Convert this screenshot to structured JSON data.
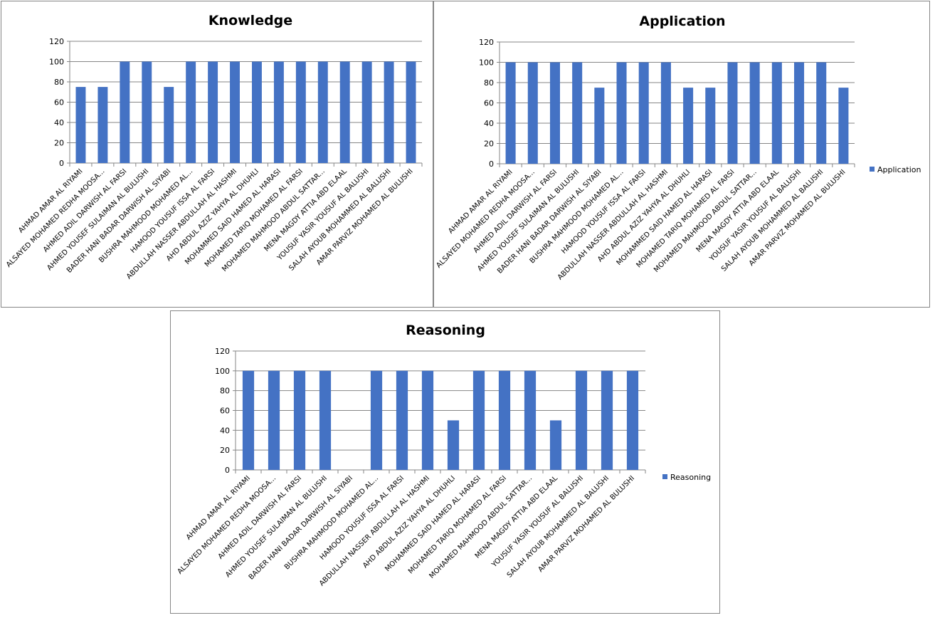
{
  "chart_data": [
    {
      "type": "bar",
      "title": "Knowledge",
      "legend": null,
      "ylim": [
        0,
        120
      ],
      "yticks": [
        "0",
        "20",
        "40",
        "60",
        "80",
        "100",
        "120"
      ],
      "grid": true,
      "color": "#4472C4",
      "categories": [
        "AHMAD AMAR  AL RIYAMI",
        "ALSAYED MOHAMED  REDHA MOOSA...",
        "AHMED ADIL DARWISH  AL FARSI",
        "AHMED YOUSEF  SULAIMAN AL BULUSHI",
        "BADER HANI BADAR DARWISH  AL SIYABI",
        "BUSHRA MAHMOOD MOHAMED AL...",
        "HAMOOD YOUSUF  ISSA AL FARSI",
        "ABDULLAH NASSER ABDULLAH AL HASHMI",
        "AHD ABDUL AZIZ  YAHYA  AL DHUHLI",
        "MOHAMMED SAID HAMED AL HARASI",
        "MOHAMED TARIQ MOHAMED  AL FARSI",
        "MOHAMED MAHMOOD ABDUL SATTAR...",
        "MENA MAGDY ATTIA  ABD  ELAAL",
        "YOUSUF YASIR YOUSUF AL BALUSHI",
        "SALAH AYOUB MOHAMMED  AL BALUSHI",
        "AMAR PARVIZ MOHAMED AL BULUSHI"
      ],
      "values": [
        75,
        75,
        100,
        100,
        75,
        100,
        100,
        100,
        100,
        100,
        100,
        100,
        100,
        100,
        100,
        100
      ]
    },
    {
      "type": "bar",
      "title": "Application",
      "legend": "Application",
      "legend_position": "right",
      "ylim": [
        0,
        120
      ],
      "yticks": [
        "0",
        "20",
        "40",
        "60",
        "80",
        "100",
        "120"
      ],
      "grid": true,
      "color": "#4472C4",
      "categories": [
        "AHMAD AMAR  AL RIYAMI",
        "ALSAYED MOHAMED  REDHA MOOSA...",
        "AHMED ADIL DARWISH  AL FARSI",
        "AHMED YOUSEF  SULAIMAN AL BULUSHI",
        "BADER HANI BADAR DARWISH  AL SIYABI",
        "BUSHRA MAHMOOD MOHAMED AL...",
        "HAMOOD YOUSUF  ISSA AL FARSI",
        "ABDULLAH NASSER ABDULLAH AL HASHMI",
        "AHD ABDUL AZIZ  YAHYA  AL DHUHLI",
        "MOHAMMED SAID HAMED AL HARASI",
        "MOHAMED TARIQ MOHAMED  AL FARSI",
        "MOHAMED MAHMOOD ABDUL SATTAR...",
        "MENA MAGDY ATTIA  ABD  ELAAL",
        "YOUSUF YASIR YOUSUF AL BALUSHI",
        "SALAH AYOUB MOHAMMED  AL BALUSHI",
        "AMAR PARVIZ MOHAMED AL BULUSHI"
      ],
      "values": [
        100,
        100,
        100,
        100,
        75,
        100,
        100,
        100,
        75,
        75,
        100,
        100,
        100,
        100,
        100,
        75
      ]
    },
    {
      "type": "bar",
      "title": "Reasoning",
      "legend": "Reasoning",
      "legend_position": "right",
      "ylim": [
        0,
        120
      ],
      "yticks": [
        "0",
        "20",
        "40",
        "60",
        "80",
        "100",
        "120"
      ],
      "grid": true,
      "color": "#4472C4",
      "categories": [
        "AHMAD AMAR  AL RIYAMI",
        "ALSAYED MOHAMED  REDHA MOOSA...",
        "AHMED ADIL DARWISH  AL FARSI",
        "AHMED YOUSEF  SULAIMAN AL BULUSHI",
        "BADER HANI BADAR DARWISH  AL SIYABI",
        "BUSHRA MAHMOOD MOHAMED AL...",
        "HAMOOD YOUSUF  ISSA AL FARSI",
        "ABDULLAH NASSER ABDULLAH AL HASHMI",
        "AHD ABDUL AZIZ  YAHYA  AL DHUHLI",
        "MOHAMMED SAID HAMED AL HARASI",
        "MOHAMED TARIQ MOHAMED  AL FARSI",
        "MOHAMED MAHMOOD ABDUL SATTAR...",
        "MENA MAGDY ATTIA  ABD  ELAAL",
        "YOUSUF YASIR YOUSUF AL BALUSHI",
        "SALAH AYOUB MOHAMMED  AL BALUSHI",
        "AMAR PARVIZ MOHAMED AL BULUSHI"
      ],
      "values": [
        100,
        100,
        100,
        100,
        0,
        100,
        100,
        100,
        50,
        100,
        100,
        100,
        50,
        100,
        100,
        100
      ]
    }
  ]
}
